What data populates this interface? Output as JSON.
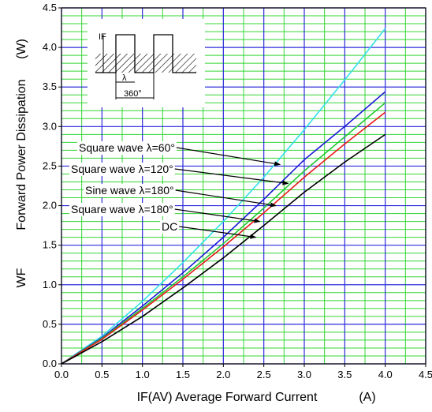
{
  "chart_data": {
    "type": "line",
    "xlabel": "IF(AV)  Average Forward Current",
    "xunit": "(A)",
    "ylabel": "Forward Power Dissipation",
    "ylabel_prefix": "WF",
    "yunit": "(W)",
    "xlim": [
      0,
      4.5
    ],
    "ylim": [
      0,
      4.5
    ],
    "x_ticks": [
      "0.0",
      "0.5",
      "1.0",
      "1.5",
      "2.0",
      "2.5",
      "3.0",
      "3.5",
      "4.0",
      "4.5"
    ],
    "y_ticks": [
      "0.0",
      "0.5",
      "1.0",
      "1.5",
      "2.0",
      "2.5",
      "3.0",
      "3.5",
      "4.0",
      "4.5"
    ],
    "grid": true,
    "x": [
      0,
      0.5,
      1.0,
      1.5,
      2.0,
      2.5,
      3.0,
      3.5,
      4.0
    ],
    "series": [
      {
        "name": "Square wave λ=60°",
        "color": "#33e0e8",
        "values": [
          0,
          0.35,
          0.79,
          1.28,
          1.8,
          2.36,
          2.96,
          3.59,
          4.24
        ]
      },
      {
        "name": "Square wave λ=120°",
        "color": "#1a1ad6",
        "values": [
          0,
          0.33,
          0.73,
          1.15,
          1.6,
          2.08,
          2.58,
          3.0,
          3.44
        ]
      },
      {
        "name": "Sine wave λ=180°",
        "color": "#22c833",
        "values": [
          0,
          0.32,
          0.7,
          1.1,
          1.52,
          1.97,
          2.44,
          2.87,
          3.3
        ]
      },
      {
        "name": "Square wave λ=180°",
        "color": "#e81a1a",
        "values": [
          0,
          0.31,
          0.68,
          1.07,
          1.48,
          1.91,
          2.36,
          2.78,
          3.18
        ]
      },
      {
        "name": "DC",
        "color": "#000000",
        "values": [
          0,
          0.28,
          0.6,
          0.96,
          1.34,
          1.75,
          2.17,
          2.55,
          2.9
        ]
      }
    ],
    "annotations": [
      {
        "text": "Square wave λ=60°",
        "target_x": 2.7,
        "target_y": 2.52
      },
      {
        "text": "Square wave λ=120°",
        "target_x": 2.8,
        "target_y": 2.28
      },
      {
        "text": "Sine wave λ=180°",
        "target_x": 2.65,
        "target_y": 2.0
      },
      {
        "text": "Square wave λ=180°",
        "target_x": 2.45,
        "target_y": 1.8
      },
      {
        "text": "DC",
        "target_x": 2.4,
        "target_y": 1.6
      }
    ],
    "inset": {
      "if_label": "IF",
      "lambda_label": "λ",
      "period_label": "360°"
    },
    "colors": {
      "minor_grid": "#33d633",
      "major_grid": "#2b2bd9",
      "axis": "#000000"
    }
  }
}
